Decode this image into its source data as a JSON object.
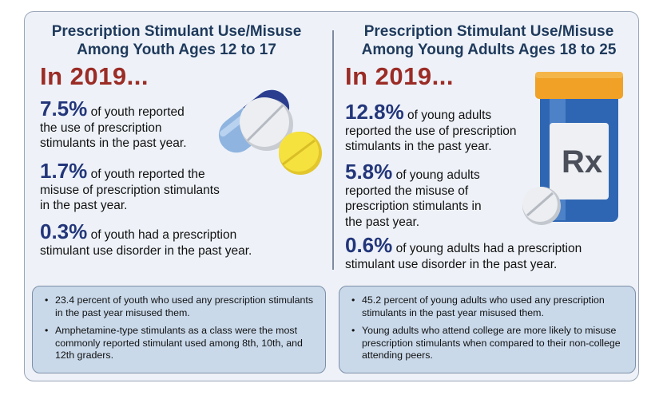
{
  "left": {
    "title_line1": "Prescription Stimulant Use/Misuse",
    "title_line2": "Among Youth Ages 12 to 17",
    "year": "In 2019...",
    "stats": [
      {
        "value": "7.5%",
        "text_a": " of youth reported",
        "text_b": "the use of prescription",
        "text_c": "stimulants in the past year."
      },
      {
        "value": "1.7%",
        "text_a": " of youth reported the",
        "text_b": "misuse of prescription stimulants",
        "text_c": "in the past year."
      },
      {
        "value": "0.3%",
        "text_a": " of youth had a prescription",
        "text_b": "stimulant use disorder in the past year."
      }
    ],
    "notes": [
      "23.4 percent of youth who used any prescription stimulants in the past year misused them.",
      "Amphetamine-type stimulants as a class were the most commonly reported stimulant used among 8th, 10th, and 12th graders."
    ]
  },
  "right": {
    "title_line1": "Prescription Stimulant Use/Misuse",
    "title_line2": "Among Young Adults Ages 18 to 25",
    "year": "In 2019...",
    "stats": [
      {
        "value": "12.8%",
        "text_a": " of young adults",
        "text_b": "reported the use of prescription",
        "text_c": "stimulants in the past year."
      },
      {
        "value": "5.8%",
        "text_a": " of young adults",
        "text_b": "reported the misuse of",
        "text_c": "prescription stimulants in",
        "text_d": "the past year."
      },
      {
        "value": "0.6%",
        "text_a": " of young adults had a prescription",
        "text_b": "stimulant use disorder in the past year."
      }
    ],
    "notes": [
      "45.2 percent of young adults who used any prescription stimulants in the past year misused them.",
      "Young adults who attend college are more likely to misuse prescription stimulants when compared to their non-college attending peers."
    ]
  },
  "bottle_label": "Rx",
  "colors": {
    "title": "#1f3a5c",
    "year": "#9b2c26",
    "stat_number": "#23367a",
    "note_box": "#c9d9ea",
    "card": "#eef2f8"
  },
  "icons": [
    "capsule-icon",
    "pill-white-icon",
    "pill-yellow-icon",
    "pill-bottle-icon",
    "pill-icon"
  ]
}
